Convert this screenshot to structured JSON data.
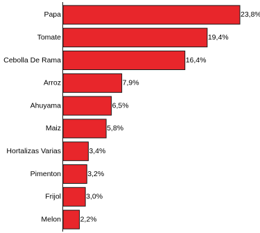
{
  "chart_data": {
    "type": "bar",
    "orientation": "horizontal",
    "categories": [
      "Papa",
      "Tomate",
      "Cebolla De Rama",
      "Arroz",
      "Ahuyama",
      "Maiz",
      "Hortalizas Varias",
      "Pimenton",
      "Frijol",
      "Melon"
    ],
    "values": [
      23.8,
      19.4,
      16.4,
      7.9,
      6.5,
      5.8,
      3.4,
      3.2,
      3.0,
      2.2
    ],
    "value_labels": [
      "23,8%",
      "19,4%",
      "16,4%",
      "7,9%",
      "6,5%",
      "5,8%",
      "3,4%",
      "3,2%",
      "3,0%",
      "2,2%"
    ],
    "unit": "%",
    "title": "",
    "xlabel": "",
    "ylabel": "",
    "xlim": [
      0,
      23.8
    ],
    "grid": false,
    "legend": "none",
    "bar_color": "#e8262b"
  }
}
